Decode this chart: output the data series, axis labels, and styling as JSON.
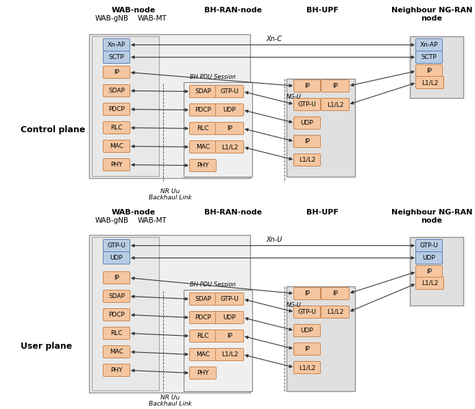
{
  "fig_width": 6.93,
  "fig_height": 5.97,
  "bg_color": "#ffffff",
  "orange_box": "#f5c6a0",
  "orange_border": "#c8824a",
  "blue_box": "#b8cce4",
  "blue_border": "#5a7fb5",
  "gray_bg1": "#ebebeb",
  "gray_bg2": "#e0e0e0",
  "gray_border1": "#909090",
  "gray_border2": "#707070",
  "cp_gnb_blue": [
    "Xn-AP",
    "SCTP"
  ],
  "cp_gnb_orange": [
    "IP",
    "SDAP",
    "PDCP",
    "RLC",
    "MAC",
    "PHY"
  ],
  "cp_bh_ran_left": [
    "SDAP",
    "PDCP",
    "RLC",
    "MAC",
    "PHY"
  ],
  "cp_bh_ran_right": [
    "GTP-U",
    "UDP",
    "IP",
    "L1/L2"
  ],
  "cp_bh_upf_left": [
    "IP",
    "GTP-U",
    "UDP",
    "IP",
    "L1/L2"
  ],
  "cp_bh_upf_right": [
    "IP",
    "L1/L2"
  ],
  "cp_neighbour_blue": [
    "Xn-AP",
    "SCTP"
  ],
  "cp_neighbour_orange": [
    "IP",
    "L1/L2"
  ],
  "up_gnb_blue": [
    "GTP-U",
    "UDP"
  ],
  "up_gnb_orange": [
    "IP",
    "SDAP",
    "PDCP",
    "RLC",
    "MAC",
    "PHY"
  ],
  "up_bh_ran_left": [
    "SDAP",
    "PDCP",
    "RLC",
    "MAC",
    "PHY"
  ],
  "up_bh_ran_right": [
    "GTP-U",
    "UDP",
    "IP",
    "L1/L2"
  ],
  "up_bh_upf_left": [
    "IP",
    "GTP-U",
    "UDP",
    "IP",
    "L1/L2"
  ],
  "up_bh_upf_right": [
    "IP",
    "L1/L2"
  ],
  "up_neighbour_blue": [
    "GTP-U",
    "UDP"
  ],
  "up_neighbour_orange": [
    "IP",
    "L1/L2"
  ]
}
